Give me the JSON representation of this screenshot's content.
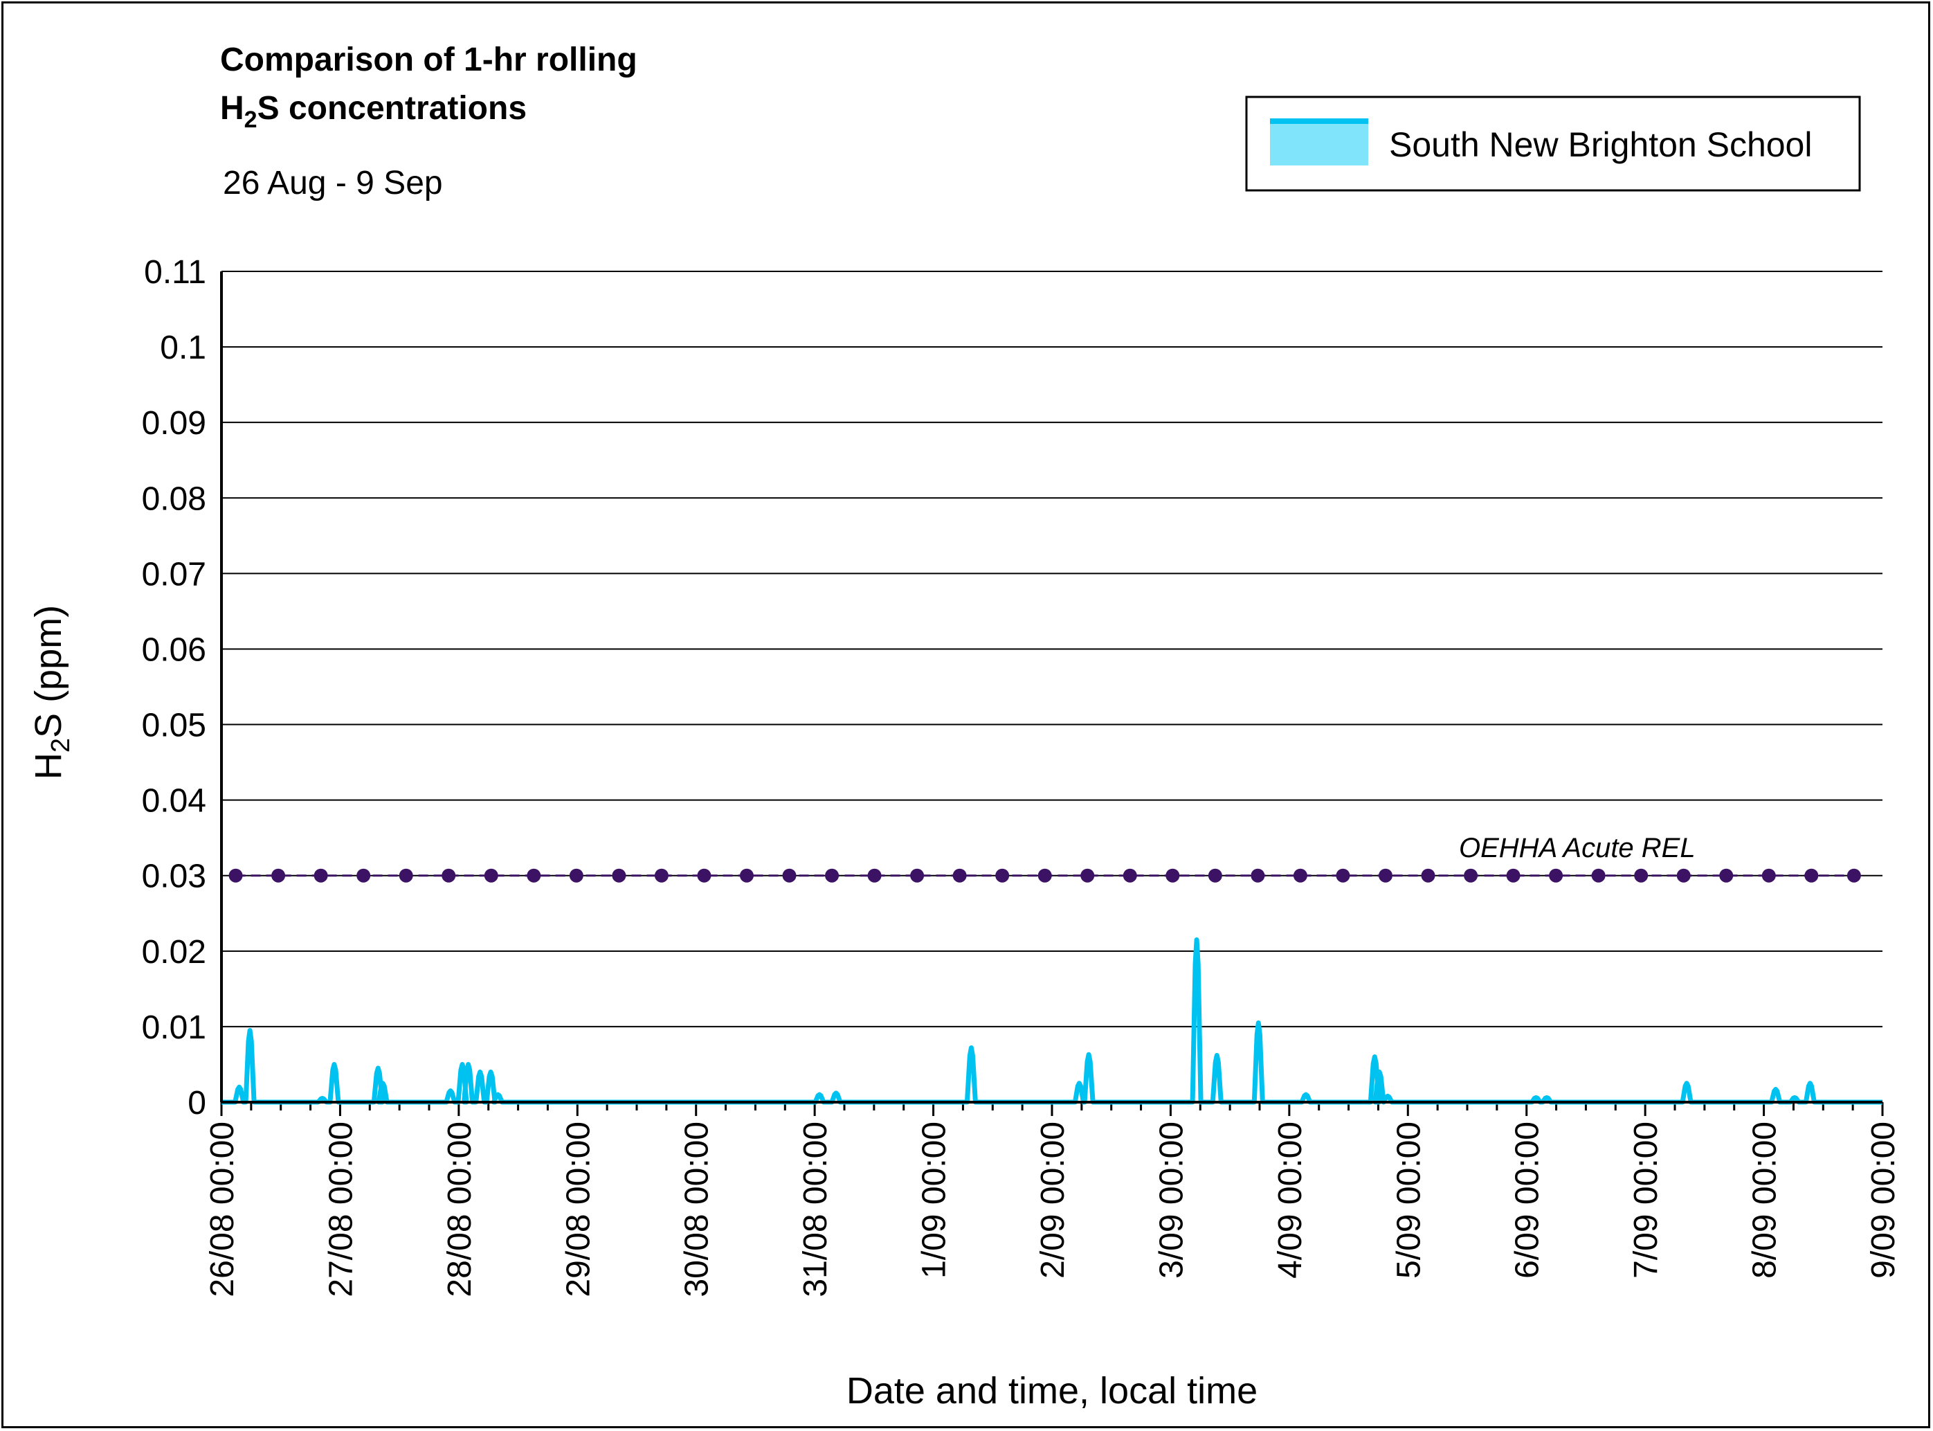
{
  "chart_data": {
    "type": "line",
    "title_line1": "Comparison of 1-hr rolling",
    "title_line2_main": "H",
    "title_line2_sub": "2",
    "title_line2_rest": "S concentrations",
    "subtitle": "26 Aug - 9 Sep",
    "ylabel_main": "H",
    "ylabel_sub": "2",
    "ylabel_rest": "S (ppm)",
    "xlabel": "Date and time, local time",
    "ylim": [
      0,
      0.11
    ],
    "yticks": [
      "0",
      "0.01",
      "0.02",
      "0.03",
      "0.04",
      "0.05",
      "0.06",
      "0.07",
      "0.08",
      "0.09",
      "0.1",
      "0.11"
    ],
    "ytick_values": [
      0,
      0.01,
      0.02,
      0.03,
      0.04,
      0.05,
      0.06,
      0.07,
      0.08,
      0.09,
      0.1,
      0.11
    ],
    "xlim_days": [
      0,
      14
    ],
    "xticks": [
      "26/08 00:00",
      "27/08 00:00",
      "28/08 00:00",
      "29/08 00:00",
      "30/08 00:00",
      "31/08 00:00",
      "1/09 00:00",
      "2/09 00:00",
      "3/09 00:00",
      "4/09 00:00",
      "5/09 00:00",
      "6/09 00:00",
      "7/09 00:00",
      "8/09 00:00",
      "9/09 00:00"
    ],
    "grid": "horizontal",
    "legend_position": "top-right",
    "series": [
      {
        "name": "South New Brighton School",
        "color": "#00c2f0",
        "legend_fill": "#80e4fb",
        "peaks": [
          {
            "day": 0.15,
            "value": 0.002
          },
          {
            "day": 0.24,
            "value": 0.0095
          },
          {
            "day": 0.85,
            "value": 0.0005
          },
          {
            "day": 0.95,
            "value": 0.005
          },
          {
            "day": 1.32,
            "value": 0.0045
          },
          {
            "day": 1.36,
            "value": 0.0025
          },
          {
            "day": 1.93,
            "value": 0.0015
          },
          {
            "day": 2.03,
            "value": 0.005
          },
          {
            "day": 2.08,
            "value": 0.005
          },
          {
            "day": 2.18,
            "value": 0.004
          },
          {
            "day": 2.27,
            "value": 0.004
          },
          {
            "day": 2.33,
            "value": 0.001
          },
          {
            "day": 5.04,
            "value": 0.001
          },
          {
            "day": 5.18,
            "value": 0.0012
          },
          {
            "day": 6.32,
            "value": 0.0072
          },
          {
            "day": 7.23,
            "value": 0.0025
          },
          {
            "day": 7.31,
            "value": 0.0063
          },
          {
            "day": 8.22,
            "value": 0.0215
          },
          {
            "day": 8.39,
            "value": 0.0062
          },
          {
            "day": 8.74,
            "value": 0.0105
          },
          {
            "day": 9.14,
            "value": 0.001
          },
          {
            "day": 9.72,
            "value": 0.006
          },
          {
            "day": 9.76,
            "value": 0.004
          },
          {
            "day": 9.83,
            "value": 0.0008
          },
          {
            "day": 11.08,
            "value": 0.0006
          },
          {
            "day": 11.17,
            "value": 0.0006
          },
          {
            "day": 12.35,
            "value": 0.0025
          },
          {
            "day": 13.1,
            "value": 0.0017
          },
          {
            "day": 13.26,
            "value": 0.0006
          },
          {
            "day": 13.39,
            "value": 0.0025
          }
        ]
      },
      {
        "name": "OEHHA Acute REL",
        "color": "#3c1264",
        "value": 0.03,
        "x_start_day": 0.12,
        "x_end_day": 13.76,
        "markers": 39
      }
    ]
  }
}
